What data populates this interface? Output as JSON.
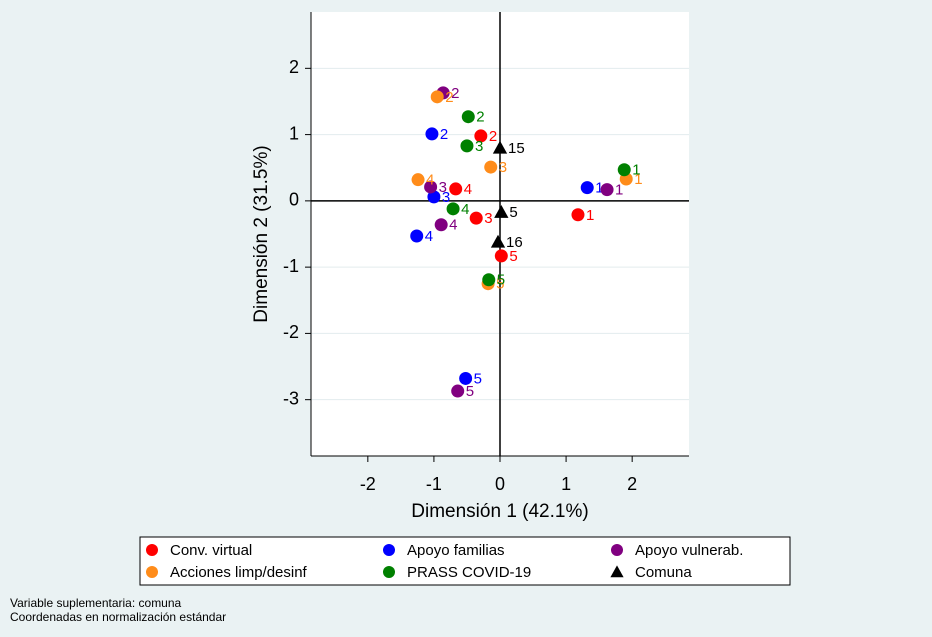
{
  "chart_data": {
    "type": "scatter",
    "xlabel": "Dimensión 1 (42.1%)",
    "ylabel": "Dimensión 2 (31.5%)",
    "xlim": [
      -2.86,
      2.86
    ],
    "ylim": [
      -3.85,
      2.85
    ],
    "xticks": [
      -2,
      -1,
      0,
      1,
      2
    ],
    "yticks": [
      -3,
      -2,
      -1,
      0,
      1,
      2
    ],
    "grid": true,
    "xline": 0,
    "yline": 0,
    "series": [
      {
        "name": "Conv. virtual",
        "color": "#ff0000",
        "marker": "circle",
        "x": [
          1.18,
          -0.29,
          -0.36,
          -0.67,
          0.02
        ],
        "y": [
          -0.21,
          0.98,
          -0.26,
          0.18,
          -0.83
        ],
        "labels": [
          "1",
          "2",
          "3",
          "4",
          "5"
        ]
      },
      {
        "name": "Apoyo familias",
        "color": "#0000ff",
        "marker": "circle",
        "x": [
          1.32,
          -1.03,
          -1.0,
          -1.26,
          -0.52
        ],
        "y": [
          0.2,
          1.01,
          0.06,
          -0.53,
          -2.68
        ],
        "labels": [
          "1",
          "2",
          "3",
          "4",
          "5"
        ]
      },
      {
        "name": "Apoyo vulnerab.",
        "color": "#800080",
        "marker": "circle",
        "x": [
          1.62,
          -0.86,
          -1.05,
          -0.89,
          -0.64
        ],
        "y": [
          0.17,
          1.63,
          0.21,
          -0.36,
          -2.87
        ],
        "labels": [
          "1",
          "2",
          "3",
          "4",
          "5"
        ]
      },
      {
        "name": "Acciones limp/desinf",
        "color": "#ff8c1a",
        "marker": "circle",
        "x": [
          1.91,
          -0.95,
          -0.14,
          -1.24,
          -0.18
        ],
        "y": [
          0.33,
          1.57,
          0.51,
          0.32,
          -1.25
        ],
        "labels": [
          "1",
          "2",
          "3",
          "4",
          "5"
        ]
      },
      {
        "name": "PRASS COVID-19",
        "color": "#008000",
        "marker": "circle",
        "x": [
          1.88,
          -0.48,
          -0.5,
          -0.71,
          -0.17
        ],
        "y": [
          0.47,
          1.27,
          0.83,
          -0.12,
          -1.19
        ],
        "labels": [
          "1",
          "2",
          "3",
          "4",
          "5"
        ]
      },
      {
        "name": "Comuna",
        "color": "#000000",
        "marker": "triangle",
        "x": [
          0.0,
          0.02,
          -0.03
        ],
        "y": [
          0.8,
          -0.17,
          -0.62
        ],
        "labels": [
          "15",
          "5",
          "16"
        ]
      }
    ],
    "notes": [
      "Variable suplementaria: comuna",
      "Coordenadas en normalización estándar"
    ]
  }
}
